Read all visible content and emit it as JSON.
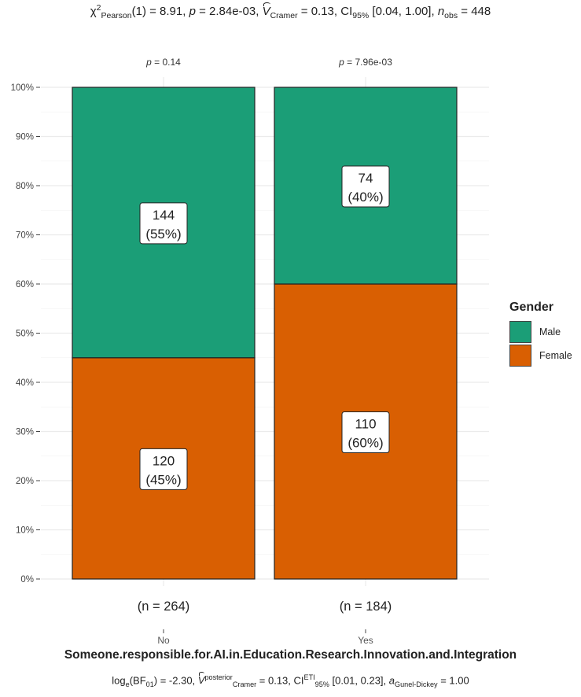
{
  "chart_data": {
    "type": "bar",
    "stacked": true,
    "normalized": true,
    "categories": [
      "No",
      "Yes"
    ],
    "category_counts": [
      "(n = 264)",
      "(n = 184)"
    ],
    "group_pvalues": [
      "p = 0.14",
      "p = 7.96e-03"
    ],
    "series": [
      {
        "name": "Female",
        "color": "#d95f02",
        "counts": [
          120,
          110
        ],
        "percent": [
          45,
          60
        ],
        "labels": [
          [
            "120",
            "(45%)"
          ],
          [
            "110",
            "(60%)"
          ]
        ]
      },
      {
        "name": "Male",
        "color": "#1b9e77",
        "counts": [
          144,
          74
        ],
        "percent": [
          55,
          40
        ],
        "labels": [
          [
            "144",
            "(55%)"
          ],
          [
            "74",
            "(40%)"
          ]
        ]
      }
    ],
    "ylim": [
      0,
      100
    ],
    "yticks": [
      "0%",
      "10%",
      "20%",
      "30%",
      "40%",
      "50%",
      "60%",
      "70%",
      "80%",
      "90%",
      "100%"
    ],
    "xlabel": "Someone.responsible.for.AI.in.Education.Research.Innovation.and.Integration",
    "legend": {
      "title": "Gender",
      "entries": [
        "Male",
        "Female"
      ],
      "position": "right"
    },
    "grid": true,
    "subtitle": {
      "chi": "χ",
      "chi_sup": "2",
      "chi_sub": "Pearson",
      "df": "(1) = 8.91, ",
      "p": "p",
      "p_val": " = 2.84e-03, ",
      "v": "V",
      "v_sub": "Cramer",
      "v_val": " = 0.13, CI",
      "ci_sub": "95%",
      "ci_val": " [0.04, 1.00], ",
      "n": "n",
      "n_sub": "obs",
      "n_val": " = 448"
    },
    "caption": {
      "log": "log",
      "log_sub": "e",
      "bf": "(BF",
      "bf_sub": "01",
      "bf_val": ") = -2.30, ",
      "v": "V",
      "v_sup": "posterior",
      "v_sub": "Cramer",
      "v_val": " = 0.13, CI",
      "ci_sup": "ETI",
      "ci_sub": "95%",
      "ci_val": " [0.01, 0.23], ",
      "a": "a",
      "a_sub": "Gunel-Dickey",
      "a_val": " = 1.00"
    }
  }
}
